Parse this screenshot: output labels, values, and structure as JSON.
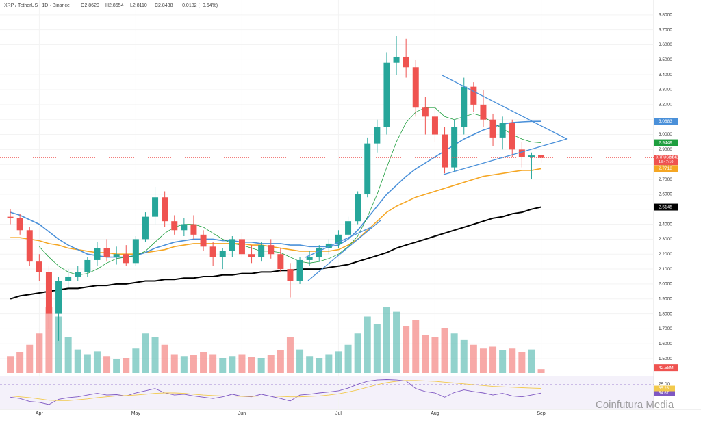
{
  "chart_data": {
    "type": "candlestick",
    "title": "XRP / TetherUS · 1D · Binance",
    "header_values": [
      "O2.8620",
      "H2.8654",
      "L2.8110",
      "C2.8438",
      "−0.0182 (−0.64%)"
    ],
    "symbol_tag": "XRPUSDT",
    "countdown": "13:47:10",
    "watermark": "Coinfutura Media",
    "up_color": "#26a69a",
    "down_color": "#ef5350",
    "grid": true,
    "categories": [
      null,
      null,
      null,
      "Apr",
      null,
      null,
      null,
      null,
      null,
      null,
      null,
      null,
      null,
      "May",
      null,
      null,
      null,
      null,
      null,
      null,
      null,
      null,
      null,
      null,
      "Jun",
      null,
      null,
      null,
      null,
      null,
      null,
      null,
      null,
      null,
      "Jul",
      null,
      null,
      null,
      null,
      null,
      null,
      null,
      null,
      null,
      "Aug",
      null,
      null,
      null,
      null,
      null,
      null,
      null,
      null,
      null,
      null,
      "Sep"
    ],
    "ohlc": [
      [
        2.45,
        2.5,
        2.4,
        2.44
      ],
      [
        2.44,
        2.47,
        2.33,
        2.36
      ],
      [
        2.36,
        2.38,
        2.12,
        2.15
      ],
      [
        2.15,
        2.2,
        2.02,
        2.08
      ],
      [
        2.08,
        2.12,
        1.7,
        1.8
      ],
      [
        1.8,
        2.05,
        1.62,
        2.02
      ],
      [
        2.02,
        2.1,
        1.98,
        2.05
      ],
      [
        2.05,
        2.12,
        2.02,
        2.08
      ],
      [
        2.08,
        2.18,
        2.05,
        2.16
      ],
      [
        2.16,
        2.28,
        2.12,
        2.24
      ],
      [
        2.24,
        2.3,
        2.15,
        2.18
      ],
      [
        2.18,
        2.25,
        2.13,
        2.2
      ],
      [
        2.2,
        2.26,
        2.12,
        2.14
      ],
      [
        2.14,
        2.32,
        2.12,
        2.3
      ],
      [
        2.3,
        2.48,
        2.28,
        2.45
      ],
      [
        2.45,
        2.65,
        2.4,
        2.58
      ],
      [
        2.58,
        2.62,
        2.38,
        2.42
      ],
      [
        2.42,
        2.46,
        2.33,
        2.36
      ],
      [
        2.36,
        2.44,
        2.32,
        2.4
      ],
      [
        2.4,
        2.46,
        2.3,
        2.33
      ],
      [
        2.33,
        2.36,
        2.22,
        2.25
      ],
      [
        2.25,
        2.28,
        2.12,
        2.18
      ],
      [
        2.18,
        2.24,
        2.1,
        2.22
      ],
      [
        2.22,
        2.32,
        2.18,
        2.3
      ],
      [
        2.3,
        2.34,
        2.18,
        2.2
      ],
      [
        2.2,
        2.26,
        2.14,
        2.18
      ],
      [
        2.18,
        2.28,
        2.15,
        2.26
      ],
      [
        2.26,
        2.3,
        2.17,
        2.2
      ],
      [
        2.2,
        2.24,
        2.08,
        2.1
      ],
      [
        2.1,
        2.14,
        1.91,
        2.02
      ],
      [
        2.02,
        2.18,
        2.0,
        2.16
      ],
      [
        2.16,
        2.22,
        2.12,
        2.18
      ],
      [
        2.18,
        2.26,
        2.15,
        2.24
      ],
      [
        2.24,
        2.3,
        2.2,
        2.27
      ],
      [
        2.27,
        2.36,
        2.24,
        2.33
      ],
      [
        2.33,
        2.45,
        2.3,
        2.42
      ],
      [
        2.42,
        2.62,
        2.4,
        2.6
      ],
      [
        2.6,
        2.98,
        2.58,
        2.94
      ],
      [
        2.94,
        3.1,
        2.88,
        3.05
      ],
      [
        3.05,
        3.55,
        3.0,
        3.48
      ],
      [
        3.48,
        3.66,
        3.4,
        3.52
      ],
      [
        3.52,
        3.64,
        3.38,
        3.45
      ],
      [
        3.45,
        3.5,
        3.12,
        3.18
      ],
      [
        3.18,
        3.25,
        3.0,
        3.12
      ],
      [
        3.12,
        3.2,
        2.95,
        3.0
      ],
      [
        3.0,
        3.05,
        2.74,
        2.78
      ],
      [
        2.78,
        3.1,
        2.75,
        3.05
      ],
      [
        3.05,
        3.38,
        3.0,
        3.32
      ],
      [
        3.32,
        3.35,
        3.15,
        3.2
      ],
      [
        3.2,
        3.3,
        3.05,
        3.1
      ],
      [
        3.1,
        3.14,
        2.92,
        2.98
      ],
      [
        2.98,
        3.12,
        2.9,
        3.08
      ],
      [
        3.08,
        3.1,
        2.85,
        2.9
      ],
      [
        2.9,
        2.95,
        2.78,
        2.85
      ],
      [
        2.85,
        2.88,
        2.7,
        2.86
      ],
      [
        2.862,
        2.8654,
        2.811,
        2.8438
      ]
    ],
    "ylim": [
      1.45,
      3.9
    ],
    "yticks": [
      {
        "value": 1.5,
        "label": "1.5000"
      },
      {
        "value": 1.6,
        "label": "1.6000"
      },
      {
        "value": 1.7,
        "label": "1.7000"
      },
      {
        "value": 1.8,
        "label": "1.8000"
      },
      {
        "value": 1.9,
        "label": "1.9000"
      },
      {
        "value": 2.0,
        "label": "2.0000"
      },
      {
        "value": 2.1,
        "label": "2.1000"
      },
      {
        "value": 2.2,
        "label": "2.2000"
      },
      {
        "value": 2.3,
        "label": "2.3000"
      },
      {
        "value": 2.4,
        "label": "2.4000"
      },
      {
        "value": 2.5,
        "label": "2.5000"
      },
      {
        "value": 2.6,
        "label": "2.6000"
      },
      {
        "value": 2.7,
        "label": "2.7000"
      },
      {
        "value": 2.8,
        "label": "2.8000"
      },
      {
        "value": 2.9,
        "label": "2.9000"
      },
      {
        "value": 3.0,
        "label": "3.0000"
      },
      {
        "value": 3.1,
        "label": "3.1000"
      },
      {
        "value": 3.2,
        "label": "3.2000"
      },
      {
        "value": 3.3,
        "label": "3.3000"
      },
      {
        "value": 3.4,
        "label": "3.4000"
      },
      {
        "value": 3.5,
        "label": "3.5000"
      },
      {
        "value": 3.6,
        "label": "3.6000"
      },
      {
        "value": 3.7,
        "label": "3.7000"
      },
      {
        "value": 3.8,
        "label": "3.8000"
      }
    ],
    "series": [
      {
        "color": "#000000",
        "values": [
          1.9,
          1.92,
          1.93,
          1.94,
          1.95,
          1.96,
          1.97,
          1.97,
          1.98,
          1.99,
          1.99,
          2.0,
          2.0,
          2.01,
          2.02,
          2.02,
          2.03,
          2.03,
          2.04,
          2.04,
          2.05,
          2.05,
          2.06,
          2.06,
          2.07,
          2.07,
          2.08,
          2.08,
          2.09,
          2.09,
          2.1,
          2.1,
          2.1,
          2.11,
          2.12,
          2.13,
          2.15,
          2.17,
          2.19,
          2.21,
          2.24,
          2.26,
          2.28,
          2.3,
          2.32,
          2.34,
          2.36,
          2.38,
          2.4,
          2.42,
          2.44,
          2.45,
          2.47,
          2.48,
          2.5,
          2.5145
        ]
      },
      {
        "color": "#f5a623",
        "values": [
          2.31,
          2.31,
          2.3,
          2.29,
          2.27,
          2.26,
          2.24,
          2.23,
          2.22,
          2.21,
          2.21,
          2.2,
          2.2,
          2.2,
          2.21,
          2.22,
          2.23,
          2.25,
          2.26,
          2.27,
          2.27,
          2.27,
          2.27,
          2.27,
          2.27,
          2.26,
          2.26,
          2.25,
          2.24,
          2.23,
          2.22,
          2.22,
          2.22,
          2.22,
          2.23,
          2.26,
          2.3,
          2.36,
          2.42,
          2.48,
          2.52,
          2.55,
          2.58,
          2.6,
          2.62,
          2.64,
          2.66,
          2.68,
          2.7,
          2.72,
          2.73,
          2.74,
          2.75,
          2.76,
          2.76,
          2.7718
        ]
      },
      {
        "color": "#4a90d9",
        "values": [
          2.48,
          2.46,
          2.43,
          2.4,
          2.35,
          2.3,
          2.26,
          2.23,
          2.2,
          2.19,
          2.18,
          2.18,
          2.18,
          2.19,
          2.21,
          2.24,
          2.26,
          2.28,
          2.29,
          2.3,
          2.3,
          2.3,
          2.29,
          2.29,
          2.28,
          2.28,
          2.27,
          2.27,
          2.27,
          2.26,
          2.26,
          2.25,
          2.25,
          2.25,
          2.26,
          2.3,
          2.36,
          2.44,
          2.52,
          2.6,
          2.66,
          2.72,
          2.77,
          2.81,
          2.85,
          2.89,
          2.93,
          2.97,
          3.0,
          3.03,
          3.05,
          3.07,
          3.08,
          3.085,
          3.088,
          3.0883
        ]
      },
      {
        "color": "#1e9e3e",
        "values": [
          null,
          null,
          null,
          2.25,
          2.18,
          2.12,
          2.08,
          2.06,
          2.07,
          2.1,
          2.14,
          2.17,
          2.18,
          2.19,
          2.22,
          2.28,
          2.34,
          2.38,
          2.4,
          2.4,
          2.38,
          2.34,
          2.3,
          2.27,
          2.26,
          2.24,
          2.22,
          2.22,
          2.21,
          2.18,
          2.15,
          2.14,
          2.15,
          2.17,
          2.2,
          2.25,
          2.32,
          2.45,
          2.6,
          2.78,
          2.95,
          3.08,
          3.15,
          3.18,
          3.18,
          3.12,
          3.1,
          3.12,
          3.14,
          3.12,
          3.08,
          3.04,
          3.0,
          2.97,
          2.95,
          2.9449
        ]
      }
    ],
    "volume": {
      "values": [
        180,
        220,
        300,
        420,
        700,
        600,
        380,
        250,
        200,
        230,
        180,
        150,
        160,
        260,
        420,
        380,
        300,
        200,
        180,
        190,
        220,
        200,
        160,
        180,
        200,
        170,
        160,
        190,
        240,
        380,
        250,
        180,
        160,
        200,
        230,
        300,
        420,
        600,
        520,
        700,
        650,
        500,
        560,
        400,
        380,
        480,
        420,
        350,
        300,
        260,
        280,
        240,
        260,
        220,
        250,
        42.58
      ],
      "value_labels": {
        "55": "42.58M"
      },
      "ylim": [
        0,
        800
      ]
    },
    "rsi": {
      "ylim": [
        20,
        90
      ],
      "yticks": [
        {
          "value": 75,
          "label": "75.00"
        }
      ],
      "series": [
        {
          "color": "#7e57c2",
          "values": [
            45,
            42,
            35,
            33,
            28,
            40,
            44,
            46,
            50,
            54,
            50,
            51,
            48,
            55,
            60,
            65,
            55,
            50,
            52,
            48,
            45,
            42,
            46,
            52,
            47,
            46,
            52,
            47,
            42,
            36,
            50,
            52,
            55,
            57,
            60,
            66,
            75,
            82,
            85,
            86,
            85,
            83,
            65,
            58,
            55,
            45,
            56,
            62,
            58,
            55,
            50,
            54,
            48,
            46,
            50,
            54.67
          ]
        },
        {
          "color": "#f2c94c",
          "values": [
            48,
            46,
            44,
            41,
            38,
            37,
            37,
            39,
            41,
            44,
            46,
            48,
            49,
            50,
            52,
            54,
            55,
            55,
            54,
            52,
            50,
            49,
            48,
            48,
            47,
            47,
            48,
            48,
            47,
            46,
            46,
            47,
            48,
            50,
            53,
            57,
            62,
            68,
            74,
            79,
            82,
            84,
            84,
            83,
            82,
            80,
            78,
            76,
            74,
            72,
            70,
            69,
            68,
            67,
            66,
            65.28
          ]
        }
      ]
    }
  }
}
